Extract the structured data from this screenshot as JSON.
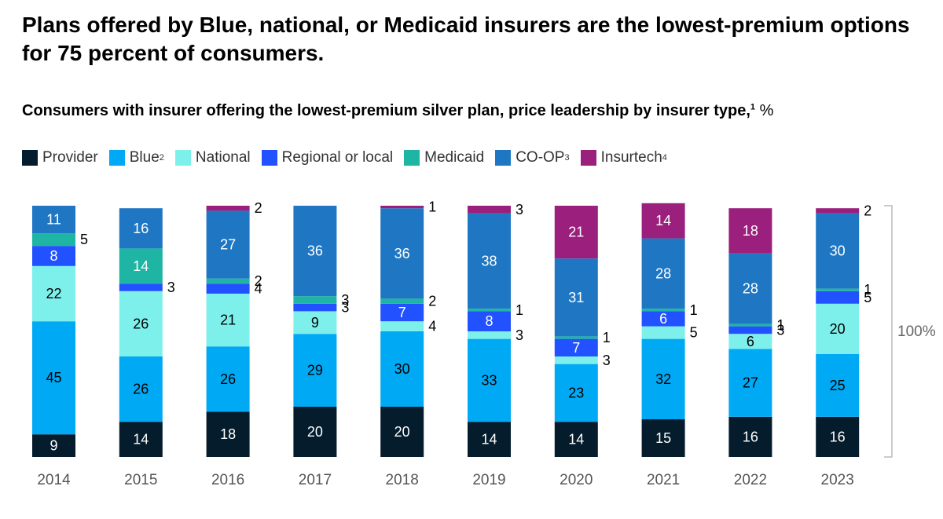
{
  "title": "Plans offered by Blue, national, or Medicaid insurers are the lowest-premium options for 75 percent of consumers.",
  "subtitle": "Consumers with insurer offering the lowest-premium silver plan, price leadership by insurer type,",
  "subtitle_footnote": "1",
  "subtitle_unit": "%",
  "chart_data": {
    "type": "bar",
    "stacked": true,
    "categories": [
      "2014",
      "2015",
      "2016",
      "2017",
      "2018",
      "2019",
      "2020",
      "2021",
      "2022",
      "2023"
    ],
    "series": [
      {
        "name": "Provider",
        "footnote": "",
        "color": "#051c2c",
        "label_color": "#ffffff",
        "values": [
          9,
          14,
          18,
          20,
          20,
          14,
          14,
          15,
          16,
          16
        ]
      },
      {
        "name": "Blue",
        "footnote": "2",
        "color": "#00a9f4",
        "label_color": "#000000",
        "values": [
          45,
          26,
          26,
          29,
          30,
          33,
          23,
          32,
          27,
          25
        ]
      },
      {
        "name": "National",
        "footnote": "",
        "color": "#7ef0ec",
        "label_color": "#000000",
        "values": [
          22,
          26,
          21,
          9,
          4,
          3,
          3,
          5,
          6,
          20
        ]
      },
      {
        "name": "Regional or local",
        "footnote": "",
        "color": "#2251ff",
        "label_color": "#ffffff",
        "values": [
          8,
          3,
          4,
          3,
          7,
          8,
          7,
          6,
          3,
          5
        ]
      },
      {
        "name": "Medicaid",
        "footnote": "",
        "color": "#1eb5a4",
        "label_color": "#ffffff",
        "values": [
          5,
          14,
          2,
          3,
          2,
          1,
          1,
          1,
          1,
          1
        ]
      },
      {
        "name": "CO-OP",
        "footnote": "3",
        "color": "#1f77c4",
        "label_color": "#ffffff",
        "values": [
          11,
          16,
          27,
          36,
          36,
          38,
          31,
          28,
          28,
          30
        ]
      },
      {
        "name": "Insurtech",
        "footnote": "4",
        "color": "#9b1f7c",
        "label_color": "#ffffff",
        "values": [
          0,
          0,
          2,
          0,
          1,
          3,
          21,
          14,
          18,
          2
        ]
      }
    ],
    "total_label": "100%",
    "ylim": [
      0,
      100
    ]
  }
}
